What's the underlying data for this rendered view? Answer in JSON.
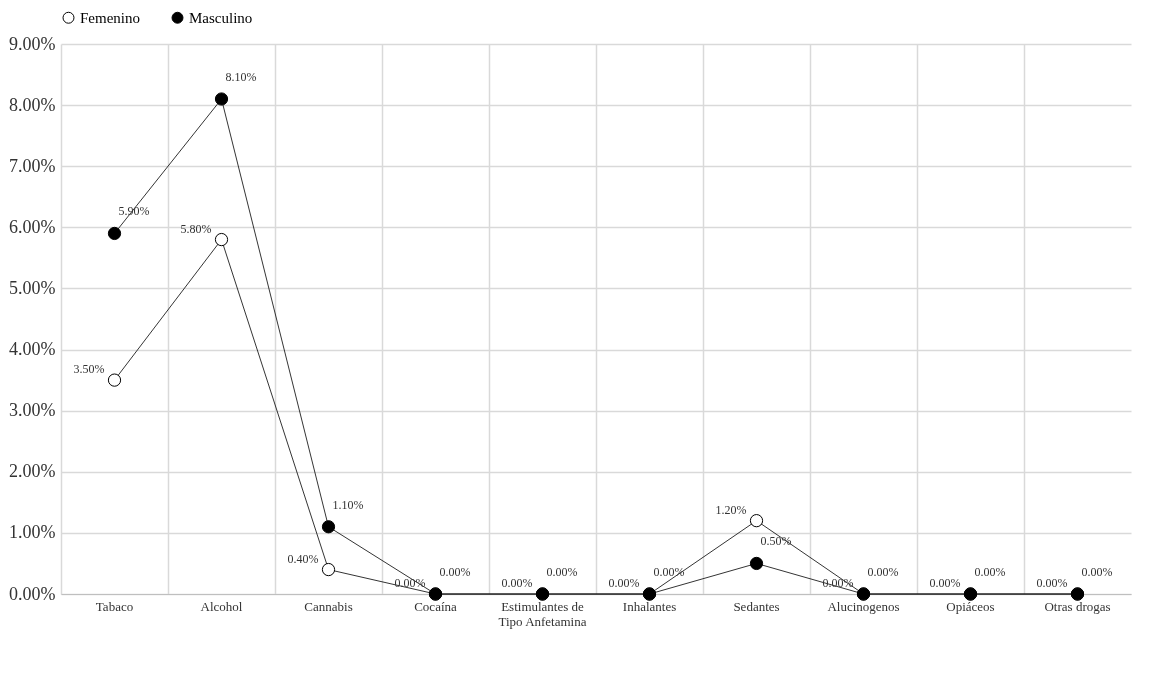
{
  "chart_data": {
    "type": "line",
    "categories": [
      "Tabaco",
      "Alcohol",
      "Cannabis",
      "Cocaína",
      "Estimulantes de Tipo Anfetamina",
      "Inhalantes",
      "Sedantes",
      "Alucinogenos",
      "Opiáceos",
      "Otras drogas"
    ],
    "series": [
      {
        "name": "Femenino",
        "color": "#ffffff",
        "values": [
          3.5,
          5.8,
          0.4,
          0,
          0,
          0,
          1.2,
          0,
          0,
          0
        ],
        "value_labels": [
          "3.50%",
          "5.80%",
          "0.40%",
          "0.00%",
          "0.00%",
          "0.00%",
          "1.20%",
          "0.00%",
          "0.00%",
          "0.00%"
        ]
      },
      {
        "name": "Masculino",
        "color": "#000000",
        "values": [
          5.9,
          8.1,
          1.1,
          0,
          0,
          0,
          0.5,
          0,
          0,
          0
        ],
        "value_labels": [
          "5.90%",
          "8.10%",
          "1.10%",
          "0.00%",
          "0.00%",
          "0.00%",
          "0.50%",
          "0.00%",
          "0.00%",
          "0.00%"
        ]
      }
    ],
    "ylim": [
      0,
      9
    ],
    "yticks": [
      {
        "value": 0,
        "label": "0.00%"
      },
      {
        "value": 1,
        "label": "1.00%"
      },
      {
        "value": 2,
        "label": "2.00%"
      },
      {
        "value": 3,
        "label": "3.00%"
      },
      {
        "value": 4,
        "label": "4.00%"
      },
      {
        "value": 5,
        "label": "5.00%"
      },
      {
        "value": 6,
        "label": "6.00%"
      },
      {
        "value": 7,
        "label": "7.00%"
      },
      {
        "value": 8,
        "label": "8.00%"
      },
      {
        "value": 9,
        "label": "9.00%"
      }
    ],
    "grid": true,
    "legend": "top",
    "marker": "circle",
    "line_style": "solid"
  }
}
